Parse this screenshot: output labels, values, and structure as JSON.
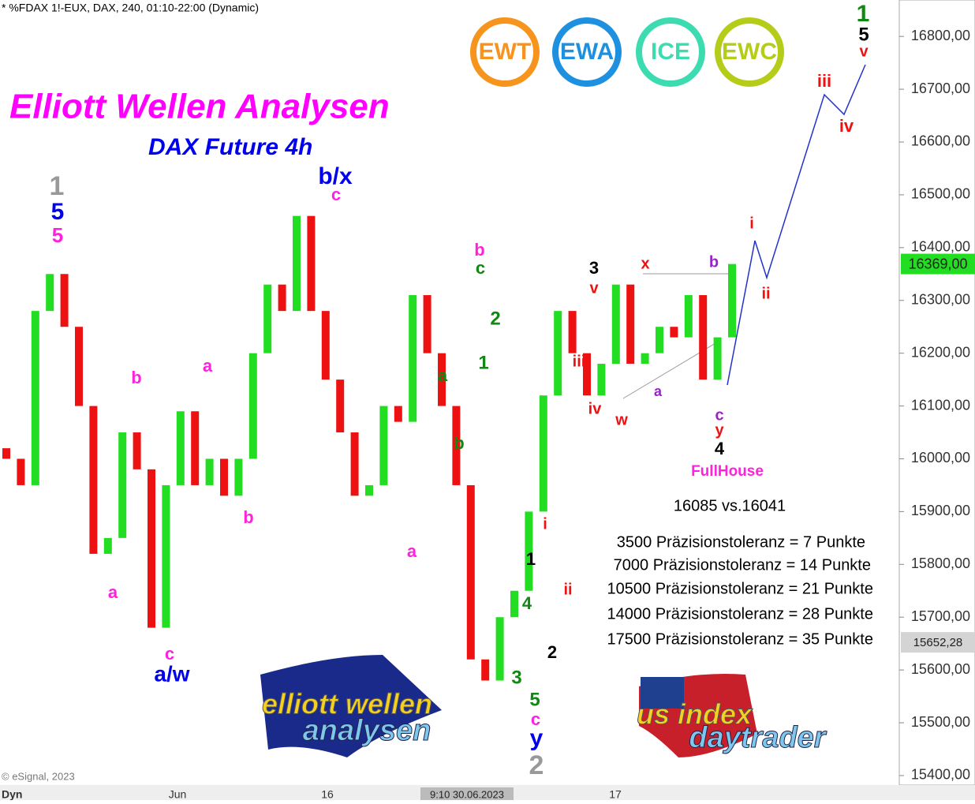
{
  "header": "* %FDAX 1!-EUX, DAX, 240, 01:10-22:00 (Dynamic)",
  "badges": [
    "EWT",
    "EWA",
    "ICE",
    "EWC"
  ],
  "info": {
    "compare": "16085 vs.16041",
    "fullhouse": "FullHouse",
    "tolerances": [
      "3500 Präzisionstoleranz =  7 Punkte",
      "7000 Präzisionstoleranz = 14 Punkte",
      "10500 Präzisionstoleranz = 21 Punkte",
      "14000 Präzisionstoleranz = 28 Punkte",
      "17500 Präzisionstoleranz = 35 Punkte"
    ]
  },
  "logos": {
    "left": [
      "elliott wellen",
      "analysen"
    ],
    "right": [
      "us index",
      "daytrader"
    ]
  },
  "footer": {
    "copyright": "© eSignal, 2023",
    "mode": "Dyn",
    "cursor": "9:10 30.06.2023",
    "x_labels": [
      "Jun",
      "16",
      "17"
    ]
  },
  "chart_data": {
    "type": "candlestick",
    "title": "Elliott Wellen Analysen",
    "subtitle": "DAX Future 4h",
    "up_color": "#22dd22",
    "down_color": "#ee1111",
    "open": [
      16020,
      16000,
      15950,
      16280,
      16350,
      16250,
      16100,
      15820,
      15850,
      16050,
      15980,
      15680,
      15950,
      16090,
      15950,
      16000,
      15930,
      16000,
      16200,
      16330,
      16280,
      16460,
      16280,
      16150,
      16050,
      15930,
      15950,
      16100,
      16070,
      16310,
      16200,
      16100,
      15950,
      15620,
      15580,
      15700,
      15750,
      15900,
      16120,
      16280,
      16200,
      16120,
      16180,
      16330,
      16180,
      16200,
      16250,
      16230,
      16310,
      16150,
      16230
    ],
    "close": [
      16000,
      15950,
      16280,
      16350,
      16250,
      16100,
      15820,
      15850,
      16050,
      15980,
      15680,
      15950,
      16090,
      15950,
      16000,
      15930,
      16000,
      16200,
      16330,
      16280,
      16460,
      16280,
      16150,
      16050,
      15930,
      15950,
      16100,
      16070,
      16310,
      16200,
      16100,
      15950,
      15620,
      15580,
      15700,
      15750,
      15900,
      16120,
      16280,
      16200,
      16120,
      16180,
      16330,
      16180,
      16200,
      16250,
      16230,
      16310,
      16150,
      16230,
      16369
    ],
    "ylim": [
      15382,
      16869
    ],
    "yticks": [
      {
        "value": 15400,
        "label": "15400,00"
      },
      {
        "value": 15500,
        "label": "15500,00"
      },
      {
        "value": 15600,
        "label": "15600,00"
      },
      {
        "value": 15700,
        "label": "15700,00"
      },
      {
        "value": 15800,
        "label": "15800,00"
      },
      {
        "value": 15900,
        "label": "15900,00"
      },
      {
        "value": 16000,
        "label": "16000,00"
      },
      {
        "value": 16100,
        "label": "16100,00"
      },
      {
        "value": 16200,
        "label": "16200,00"
      },
      {
        "value": 16300,
        "label": "16300,00"
      },
      {
        "value": 16400,
        "label": "16400,00"
      },
      {
        "value": 16500,
        "label": "16500,00"
      },
      {
        "value": 16600,
        "label": "16600,00"
      },
      {
        "value": 16700,
        "label": "16700,00"
      },
      {
        "value": 16800,
        "label": "16800,00"
      }
    ],
    "price_labels": [
      {
        "value": 16369,
        "label": "16369,00",
        "color": "#22dd22"
      },
      {
        "value": 15652.28,
        "label": "15652,28",
        "color": "#d4d4d4"
      }
    ],
    "annotations": [
      {
        "text": "1",
        "color": "#999999"
      },
      {
        "text": "5",
        "color": "#0000ee"
      },
      {
        "text": "5",
        "color": "#ff22dd"
      },
      {
        "text": "b/x",
        "color": "#0000ee"
      },
      {
        "text": "c",
        "color": "#ff22dd"
      },
      {
        "text": "a",
        "color": "#ff22dd"
      },
      {
        "text": "b",
        "color": "#ff22dd"
      },
      {
        "text": "c",
        "color": "#ff22dd"
      },
      {
        "text": "a/w",
        "color": "#0000ee"
      },
      {
        "text": "a",
        "color": "#ff22dd"
      },
      {
        "text": "b",
        "color": "#ff22dd"
      },
      {
        "text": "a",
        "color": "#ff22dd"
      },
      {
        "text": "b",
        "color": "#ff22dd"
      },
      {
        "text": "c",
        "color": "#118811"
      },
      {
        "text": "a",
        "color": "#118811"
      },
      {
        "text": "b",
        "color": "#118811"
      },
      {
        "text": "2",
        "color": "#118811"
      },
      {
        "text": "1",
        "color": "#118811"
      },
      {
        "text": "1",
        "color": "#000000"
      },
      {
        "text": "4",
        "color": "#118811"
      },
      {
        "text": "3",
        "color": "#118811"
      },
      {
        "text": "2",
        "color": "#000000"
      },
      {
        "text": "5",
        "color": "#118811"
      },
      {
        "text": "c",
        "color": "#ff22dd"
      },
      {
        "text": "y",
        "color": "#0000ee"
      },
      {
        "text": "2",
        "color": "#999999"
      },
      {
        "text": "i",
        "color": "#ee1111"
      },
      {
        "text": "ii",
        "color": "#ee1111"
      },
      {
        "text": "iii",
        "color": "#ee1111"
      },
      {
        "text": "iv",
        "color": "#ee1111"
      },
      {
        "text": "3",
        "color": "#000000"
      },
      {
        "text": "v",
        "color": "#ee1111"
      },
      {
        "text": "w",
        "color": "#ee1111"
      },
      {
        "text": "x",
        "color": "#ee1111"
      },
      {
        "text": "a",
        "color": "#9922cc"
      },
      {
        "text": "b",
        "color": "#9922cc"
      },
      {
        "text": "c",
        "color": "#9922cc"
      },
      {
        "text": "y",
        "color": "#ee1111"
      },
      {
        "text": "4",
        "color": "#000000"
      },
      {
        "text": "i",
        "color": "#ee1111"
      },
      {
        "text": "ii",
        "color": "#ee1111"
      },
      {
        "text": "iii",
        "color": "#ee1111"
      },
      {
        "text": "iv",
        "color": "#ee1111"
      },
      {
        "text": "1",
        "color": "#118811"
      },
      {
        "text": "5",
        "color": "#000000"
      },
      {
        "text": "v",
        "color": "#ee1111"
      }
    ]
  }
}
